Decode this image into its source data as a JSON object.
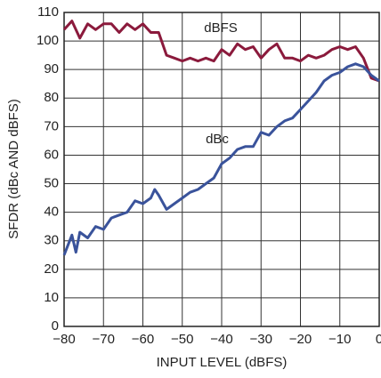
{
  "chart_data": {
    "type": "line",
    "xlabel": "INPUT LEVEL (dBFS)",
    "ylabel": "SFDR (dBc AND dBFS)",
    "annotations": [
      "dBFS",
      "dBc"
    ],
    "series": [
      {
        "name": "dBFS",
        "color": "#8b1a3c",
        "x": [
          -80,
          -78,
          -76,
          -74,
          -72,
          -70,
          -68,
          -66,
          -64,
          -62,
          -60,
          -58,
          -56,
          -54,
          -52,
          -50,
          -48,
          -46,
          -44,
          -42,
          -40,
          -38,
          -36,
          -34,
          -32,
          -30,
          -28,
          -26,
          -24,
          -22,
          -20,
          -18,
          -16,
          -14,
          -12,
          -10,
          -8,
          -6,
          -4,
          -2,
          0
        ],
        "values": [
          104,
          107,
          101,
          106,
          104,
          106,
          106,
          103,
          106,
          104,
          106,
          103,
          103,
          95,
          94,
          93,
          94,
          93,
          94,
          93,
          97,
          95,
          99,
          97,
          98,
          94,
          97,
          99,
          94,
          94,
          93,
          95,
          94,
          95,
          97,
          98,
          97,
          98,
          94,
          87,
          86
        ]
      },
      {
        "name": "dBc",
        "color": "#3a539b",
        "x": [
          -80,
          -78,
          -77,
          -76,
          -74,
          -72,
          -70,
          -68,
          -66,
          -64,
          -62,
          -60,
          -58,
          -57,
          -56,
          -54,
          -52,
          -50,
          -48,
          -46,
          -44,
          -42,
          -40,
          -38,
          -36,
          -34,
          -32,
          -30,
          -28,
          -26,
          -24,
          -22,
          -20,
          -18,
          -16,
          -14,
          -12,
          -10,
          -8,
          -6,
          -4,
          -2,
          0
        ],
        "values": [
          25,
          32,
          26,
          33,
          31,
          35,
          34,
          38,
          39,
          40,
          44,
          43,
          45,
          48,
          46,
          41,
          43,
          45,
          47,
          48,
          50,
          52,
          57,
          59,
          62,
          63,
          63,
          68,
          67,
          70,
          72,
          73,
          76,
          79,
          82,
          86,
          88,
          89,
          91,
          92,
          91,
          88,
          86
        ]
      }
    ],
    "xlim": [
      -80,
      0
    ],
    "xticks": [
      {
        "value": -80,
        "label": "−80"
      },
      {
        "value": -70,
        "label": "−70"
      },
      {
        "value": -60,
        "label": "−60"
      },
      {
        "value": -50,
        "label": "−50"
      },
      {
        "value": -40,
        "label": "−40"
      },
      {
        "value": -30,
        "label": "−30"
      },
      {
        "value": -20,
        "label": "−20"
      },
      {
        "value": -10,
        "label": "−10"
      },
      0
    ],
    "ylim": [
      0,
      110
    ],
    "yticks": [
      0,
      10,
      20,
      30,
      40,
      50,
      60,
      70,
      80,
      90,
      100,
      110
    ],
    "grid": true
  }
}
